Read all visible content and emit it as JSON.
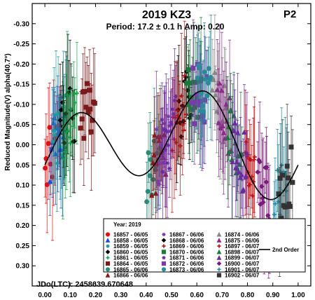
{
  "chart_data": {
    "type": "scatter",
    "title": "2019 KZ3",
    "subtitle": "Period: 17.2 ± 0.1 h  Amp: 0.20",
    "corner_label": "P2",
    "ylabel": "Reduced Magnitude(V) alpha(40.7°)",
    "xlabel": "",
    "xlim": [
      -0.05,
      1.05
    ],
    "ylim": [
      -0.35,
      0.35
    ],
    "y_inverted": true,
    "x_ticks": [
      "0.00",
      "0.10",
      "0.20",
      "0.30",
      "0.40",
      "0.50",
      "0.60",
      "0.70",
      "0.80",
      "0.90",
      "1.00"
    ],
    "y_ticks": [
      "-0.30",
      "-0.25",
      "-0.20",
      "-0.15",
      "-0.10",
      "-0.05",
      "0.00",
      "0.05",
      "0.10",
      "0.15",
      "0.20",
      "0.25",
      "0.30"
    ],
    "jd_label": "JDo(LTC): 2458639.670648",
    "legend_title": "Year: 2019",
    "legend_position": "bottom-right",
    "fit_label": "2nd Order",
    "fit": {
      "order": 2,
      "mean": 0.0,
      "a1": 0.04,
      "b1": 0.0,
      "a2": 0.01,
      "b2": -0.105
    },
    "series": [
      {
        "name": "16857 - 06/05",
        "color": "#e01010",
        "marker": "circle",
        "x_range": [
          0.0,
          0.06
        ]
      },
      {
        "name": "16858 - 06/05",
        "color": "#1f4fd0",
        "marker": "triangle",
        "x_range": [
          0.02,
          0.08
        ]
      },
      {
        "name": "16859 - 06/05",
        "color": "#1a9a9a",
        "marker": "asterisk",
        "x_range": [
          0.03,
          0.09
        ]
      },
      {
        "name": "16860 - 06/05",
        "color": "#000000",
        "marker": "diamond",
        "x_range": [
          0.06,
          0.12
        ]
      },
      {
        "name": "16861 - 06/05",
        "color": "#16a34a",
        "marker": "plus",
        "x_range": [
          0.07,
          0.13
        ]
      },
      {
        "name": "16864 - 06/05",
        "color": "#7a1a1a",
        "marker": "square",
        "x_range": [
          0.14,
          0.2
        ]
      },
      {
        "name": "16865 - 06/06",
        "color": "#2a8a7a",
        "marker": "circle",
        "x_range": [
          0.4,
          0.46
        ]
      },
      {
        "name": "16866 - 06/06",
        "color": "#8a1a1a",
        "marker": "triangle",
        "x_range": [
          0.42,
          0.48
        ]
      },
      {
        "name": "16867 - 06/06",
        "color": "#7a3aaa",
        "marker": "asterisk",
        "x_range": [
          0.44,
          0.5
        ]
      },
      {
        "name": "16868 - 06/06",
        "color": "#000000",
        "marker": "diamond",
        "x_range": [
          0.52,
          0.58
        ]
      },
      {
        "name": "16869 - 06/06",
        "color": "#b01010",
        "marker": "plus",
        "x_range": [
          0.5,
          0.56
        ]
      },
      {
        "name": "16870 - 06/06",
        "color": "#1a7a3a",
        "marker": "square",
        "x_range": [
          0.56,
          0.62
        ]
      },
      {
        "name": "16871 - 06/06",
        "color": "#6a2aa0",
        "marker": "asterisk",
        "x_range": [
          0.46,
          0.52
        ]
      },
      {
        "name": "16872 - 06/06",
        "color": "#7a3aaa",
        "marker": "square",
        "x_range": [
          0.58,
          0.64
        ]
      },
      {
        "name": "16873 - 06/06",
        "color": "#2a8a9a",
        "marker": "circle",
        "x_range": [
          0.6,
          0.66
        ]
      },
      {
        "name": "16874 - 06/06",
        "color": "#888888",
        "marker": "triangle",
        "x_range": [
          0.66,
          0.72
        ]
      },
      {
        "name": "16875 - 06/06",
        "color": "#8a2a8a",
        "marker": "triangle",
        "x_range": [
          0.68,
          0.74
        ]
      },
      {
        "name": "16897 - 06/07",
        "color": "#c01010",
        "marker": "plus",
        "x_range": [
          0.79,
          0.83
        ]
      },
      {
        "name": "16898 - 06/07",
        "color": "#1a7a3a",
        "marker": "triangle",
        "x_range": [
          0.72,
          0.78
        ]
      },
      {
        "name": "16899 - 06/07",
        "color": "#6a2aa0",
        "marker": "triangle",
        "x_range": [
          0.74,
          0.8
        ]
      },
      {
        "name": "16900 - 06/07",
        "color": "#7a1a7a",
        "marker": "diamond",
        "x_range": [
          0.84,
          0.89
        ]
      },
      {
        "name": "16901 - 06/07",
        "color": "#1a8aa0",
        "marker": "plus",
        "x_range": [
          0.9,
          0.96
        ]
      },
      {
        "name": "16902 - 06/07",
        "color": "#333333",
        "marker": "square",
        "x_range": [
          0.92,
          0.98
        ]
      }
    ]
  }
}
